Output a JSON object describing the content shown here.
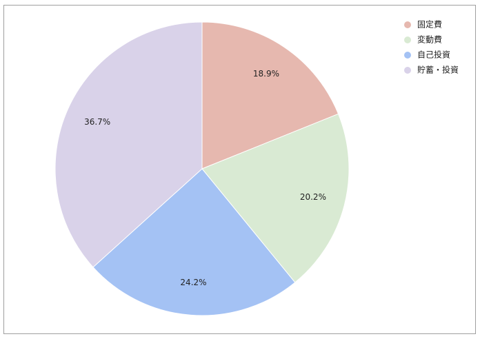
{
  "chart_data": {
    "type": "pie",
    "categories": [
      "固定費",
      "変動費",
      "自己投資",
      "貯蓄・投資"
    ],
    "values": [
      18.9,
      20.2,
      24.2,
      36.7
    ],
    "value_labels": [
      "18.9%",
      "20.2%",
      "24.2%",
      "36.7%"
    ],
    "colors": [
      "#e6b8af",
      "#d9ead3",
      "#a4c2f4",
      "#d9d2e9"
    ],
    "legend": "top-right"
  }
}
